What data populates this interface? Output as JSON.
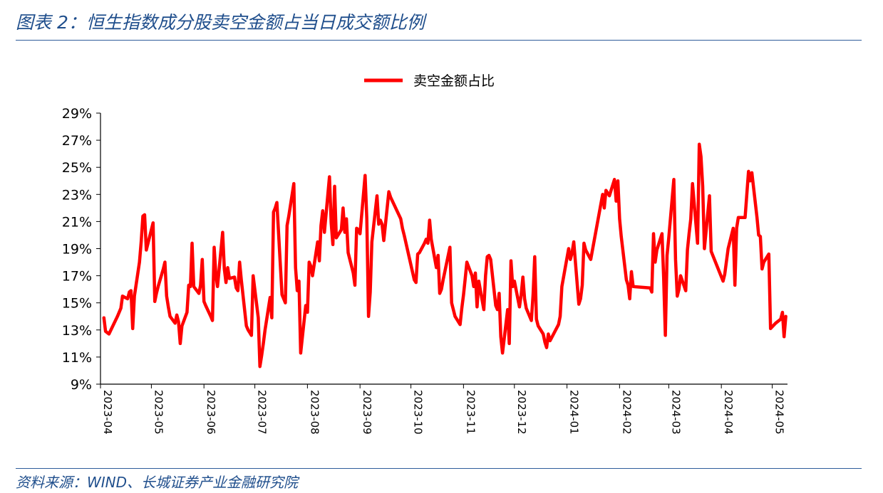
{
  "figure": {
    "title": "图表 2：恒生指数成分股卖空金额占当日成交额比例",
    "source": "资料来源：WIND、长城证券产业金融研究院"
  },
  "chart_data": {
    "type": "line",
    "title": "",
    "xlabel": "",
    "ylabel": "",
    "ylim": [
      0.09,
      0.29
    ],
    "yticks": [
      "9%",
      "11%",
      "13%",
      "15%",
      "17%",
      "19%",
      "21%",
      "23%",
      "25%",
      "27%",
      "29%"
    ],
    "xticks": [
      "2023-04",
      "2023-05",
      "2023-06",
      "2023-07",
      "2023-08",
      "2023-09",
      "2023-10",
      "2023-11",
      "2023-12",
      "2024-01",
      "2024-02",
      "2024-03",
      "2024-04",
      "2024-05"
    ],
    "legend": {
      "position": "top-center"
    },
    "grid": false,
    "series": [
      {
        "name": "卖空金额占比",
        "color": "#FF0000",
        "points": [
          [
            "2023-04-03",
            0.139
          ],
          [
            "2023-04-04",
            0.129
          ],
          [
            "2023-04-06",
            0.127
          ],
          [
            "2023-04-11",
            0.14
          ],
          [
            "2023-04-13",
            0.146
          ],
          [
            "2023-04-14",
            0.155
          ],
          [
            "2023-04-17",
            0.153
          ],
          [
            "2023-04-18",
            0.158
          ],
          [
            "2023-04-19",
            0.159
          ],
          [
            "2023-04-20",
            0.131
          ],
          [
            "2023-04-21",
            0.155
          ],
          [
            "2023-04-24",
            0.18
          ],
          [
            "2023-04-25",
            0.195
          ],
          [
            "2023-04-26",
            0.214
          ],
          [
            "2023-04-27",
            0.215
          ],
          [
            "2023-04-28",
            0.189
          ],
          [
            "2023-05-02",
            0.209
          ],
          [
            "2023-05-03",
            0.151
          ],
          [
            "2023-05-04",
            0.157
          ],
          [
            "2023-05-05",
            0.162
          ],
          [
            "2023-05-08",
            0.175
          ],
          [
            "2023-05-09",
            0.18
          ],
          [
            "2023-05-10",
            0.155
          ],
          [
            "2023-05-11",
            0.147
          ],
          [
            "2023-05-12",
            0.14
          ],
          [
            "2023-05-15",
            0.135
          ],
          [
            "2023-05-16",
            0.141
          ],
          [
            "2023-05-17",
            0.136
          ],
          [
            "2023-05-18",
            0.12
          ],
          [
            "2023-05-19",
            0.133
          ],
          [
            "2023-05-22",
            0.143
          ],
          [
            "2023-05-23",
            0.163
          ],
          [
            "2023-05-24",
            0.162
          ],
          [
            "2023-05-25",
            0.194
          ],
          [
            "2023-05-26",
            0.162
          ],
          [
            "2023-05-29",
            0.157
          ],
          [
            "2023-05-30",
            0.163
          ],
          [
            "2023-05-31",
            0.182
          ],
          [
            "2023-06-01",
            0.151
          ],
          [
            "2023-06-02",
            0.148
          ],
          [
            "2023-06-05",
            0.14
          ],
          [
            "2023-06-06",
            0.137
          ],
          [
            "2023-06-07",
            0.191
          ],
          [
            "2023-06-08",
            0.171
          ],
          [
            "2023-06-09",
            0.162
          ],
          [
            "2023-06-12",
            0.202
          ],
          [
            "2023-06-13",
            0.175
          ],
          [
            "2023-06-14",
            0.165
          ],
          [
            "2023-06-15",
            0.176
          ],
          [
            "2023-06-16",
            0.168
          ],
          [
            "2023-06-19",
            0.169
          ],
          [
            "2023-06-20",
            0.161
          ],
          [
            "2023-06-21",
            0.159
          ],
          [
            "2023-06-22",
            0.18
          ],
          [
            "2023-06-23",
            0.167
          ],
          [
            "2023-06-26",
            0.133
          ],
          [
            "2023-06-27",
            0.13
          ],
          [
            "2023-06-28",
            0.128
          ],
          [
            "2023-06-29",
            0.126
          ],
          [
            "2023-06-30",
            0.17
          ],
          [
            "2023-07-03",
            0.139
          ],
          [
            "2023-07-04",
            0.103
          ],
          [
            "2023-07-05",
            0.111
          ],
          [
            "2023-07-06",
            0.12
          ],
          [
            "2023-07-07",
            0.13
          ],
          [
            "2023-07-10",
            0.154
          ],
          [
            "2023-07-11",
            0.139
          ],
          [
            "2023-07-12",
            0.217
          ],
          [
            "2023-07-13",
            0.22
          ],
          [
            "2023-07-14",
            0.224
          ],
          [
            "2023-07-17",
            0.156
          ],
          [
            "2023-07-18",
            0.153
          ],
          [
            "2023-07-19",
            0.15
          ],
          [
            "2023-07-20",
            0.207
          ],
          [
            "2023-07-21",
            0.214
          ],
          [
            "2023-07-24",
            0.238
          ],
          [
            "2023-07-25",
            0.176
          ],
          [
            "2023-07-26",
            0.159
          ],
          [
            "2023-07-27",
            0.166
          ],
          [
            "2023-07-28",
            0.113
          ],
          [
            "2023-07-31",
            0.148
          ],
          [
            "2023-08-01",
            0.143
          ],
          [
            "2023-08-02",
            0.18
          ],
          [
            "2023-08-03",
            0.177
          ],
          [
            "2023-08-04",
            0.17
          ],
          [
            "2023-08-07",
            0.195
          ],
          [
            "2023-08-08",
            0.181
          ],
          [
            "2023-08-09",
            0.207
          ],
          [
            "2023-08-10",
            0.218
          ],
          [
            "2023-08-11",
            0.202
          ],
          [
            "2023-08-14",
            0.243
          ],
          [
            "2023-08-15",
            0.209
          ],
          [
            "2023-08-16",
            0.193
          ],
          [
            "2023-08-17",
            0.236
          ],
          [
            "2023-08-18",
            0.198
          ],
          [
            "2023-08-21",
            0.204
          ],
          [
            "2023-08-22",
            0.22
          ],
          [
            "2023-08-23",
            0.202
          ],
          [
            "2023-08-24",
            0.212
          ],
          [
            "2023-08-25",
            0.187
          ],
          [
            "2023-08-28",
            0.172
          ],
          [
            "2023-08-29",
            0.163
          ],
          [
            "2023-08-30",
            0.205
          ],
          [
            "2023-08-31",
            0.204
          ],
          [
            "2023-09-01",
            0.201
          ],
          [
            "2023-09-04",
            0.244
          ],
          [
            "2023-09-05",
            0.212
          ],
          [
            "2023-09-06",
            0.14
          ],
          [
            "2023-09-07",
            0.158
          ],
          [
            "2023-09-08",
            0.195
          ],
          [
            "2023-09-11",
            0.229
          ],
          [
            "2023-09-12",
            0.208
          ],
          [
            "2023-09-13",
            0.211
          ],
          [
            "2023-09-14",
            0.208
          ],
          [
            "2023-09-15",
            0.196
          ],
          [
            "2023-09-18",
            0.232
          ],
          [
            "2023-09-19",
            0.228
          ],
          [
            "2023-09-25",
            0.212
          ],
          [
            "2023-09-26",
            0.205
          ],
          [
            "2023-09-27",
            0.2
          ],
          [
            "2023-10-03",
            0.167
          ],
          [
            "2023-10-04",
            0.165
          ],
          [
            "2023-10-05",
            0.186
          ],
          [
            "2023-10-06",
            0.187
          ],
          [
            "2023-10-09",
            0.194
          ],
          [
            "2023-10-10",
            0.197
          ],
          [
            "2023-10-11",
            0.194
          ],
          [
            "2023-10-12",
            0.211
          ],
          [
            "2023-10-13",
            0.197
          ],
          [
            "2023-10-16",
            0.176
          ],
          [
            "2023-10-17",
            0.185
          ],
          [
            "2023-10-18",
            0.157
          ],
          [
            "2023-10-19",
            0.16
          ],
          [
            "2023-10-20",
            0.167
          ],
          [
            "2023-10-24",
            0.191
          ],
          [
            "2023-10-25",
            0.15
          ],
          [
            "2023-10-26",
            0.145
          ],
          [
            "2023-10-27",
            0.14
          ],
          [
            "2023-10-30",
            0.134
          ],
          [
            "2023-10-31",
            0.146
          ],
          [
            "2023-11-01",
            0.156
          ],
          [
            "2023-11-02",
            0.168
          ],
          [
            "2023-11-03",
            0.18
          ],
          [
            "2023-11-06",
            0.17
          ],
          [
            "2023-11-07",
            0.162
          ],
          [
            "2023-11-08",
            0.172
          ],
          [
            "2023-11-09",
            0.147
          ],
          [
            "2023-11-10",
            0.166
          ],
          [
            "2023-11-13",
            0.145
          ],
          [
            "2023-11-14",
            0.17
          ],
          [
            "2023-11-15",
            0.184
          ],
          [
            "2023-11-16",
            0.185
          ],
          [
            "2023-11-17",
            0.182
          ],
          [
            "2023-11-20",
            0.148
          ],
          [
            "2023-11-21",
            0.145
          ],
          [
            "2023-11-22",
            0.157
          ],
          [
            "2023-11-23",
            0.125
          ],
          [
            "2023-11-24",
            0.113
          ],
          [
            "2023-11-27",
            0.145
          ],
          [
            "2023-11-28",
            0.12
          ],
          [
            "2023-11-29",
            0.181
          ],
          [
            "2023-11-30",
            0.162
          ],
          [
            "2023-12-01",
            0.166
          ],
          [
            "2023-12-04",
            0.147
          ],
          [
            "2023-12-05",
            0.156
          ],
          [
            "2023-12-06",
            0.169
          ],
          [
            "2023-12-07",
            0.153
          ],
          [
            "2023-12-08",
            0.146
          ],
          [
            "2023-12-11",
            0.137
          ],
          [
            "2023-12-12",
            0.156
          ],
          [
            "2023-12-13",
            0.184
          ],
          [
            "2023-12-14",
            0.138
          ],
          [
            "2023-12-15",
            0.133
          ],
          [
            "2023-12-18",
            0.127
          ],
          [
            "2023-12-19",
            0.121
          ],
          [
            "2023-12-20",
            0.117
          ],
          [
            "2023-12-21",
            0.127
          ],
          [
            "2023-12-22",
            0.122
          ],
          [
            "2023-12-27",
            0.134
          ],
          [
            "2023-12-28",
            0.14
          ],
          [
            "2023-12-29",
            0.162
          ],
          [
            "2024-01-02",
            0.19
          ],
          [
            "2024-01-03",
            0.182
          ],
          [
            "2024-01-04",
            0.187
          ],
          [
            "2024-01-05",
            0.195
          ],
          [
            "2024-01-08",
            0.149
          ],
          [
            "2024-01-09",
            0.153
          ],
          [
            "2024-01-10",
            0.163
          ],
          [
            "2024-01-11",
            0.194
          ],
          [
            "2024-01-12",
            0.189
          ],
          [
            "2024-01-15",
            0.182
          ],
          [
            "2024-01-22",
            0.23
          ],
          [
            "2024-01-23",
            0.22
          ],
          [
            "2024-01-24",
            0.233
          ],
          [
            "2024-01-25",
            0.231
          ],
          [
            "2024-01-26",
            0.229
          ],
          [
            "2024-01-29",
            0.241
          ],
          [
            "2024-01-30",
            0.225
          ],
          [
            "2024-01-31",
            0.24
          ],
          [
            "2024-02-01",
            0.212
          ],
          [
            "2024-02-02",
            0.199
          ],
          [
            "2024-02-05",
            0.167
          ],
          [
            "2024-02-06",
            0.163
          ],
          [
            "2024-02-07",
            0.153
          ],
          [
            "2024-02-08",
            0.173
          ],
          [
            "2024-02-09",
            0.162
          ],
          [
            "2024-02-19",
            0.161
          ],
          [
            "2024-02-20",
            0.158
          ],
          [
            "2024-02-21",
            0.201
          ],
          [
            "2024-02-22",
            0.18
          ],
          [
            "2024-02-23",
            0.189
          ],
          [
            "2024-02-26",
            0.201
          ],
          [
            "2024-02-27",
            0.169
          ],
          [
            "2024-02-28",
            0.126
          ],
          [
            "2024-02-29",
            0.185
          ],
          [
            "2024-03-01",
            0.198
          ],
          [
            "2024-03-04",
            0.241
          ],
          [
            "2024-03-05",
            0.182
          ],
          [
            "2024-03-06",
            0.155
          ],
          [
            "2024-03-07",
            0.16
          ],
          [
            "2024-03-08",
            0.17
          ],
          [
            "2024-03-11",
            0.159
          ],
          [
            "2024-03-12",
            0.189
          ],
          [
            "2024-03-13",
            0.201
          ],
          [
            "2024-03-14",
            0.212
          ],
          [
            "2024-03-15",
            0.238
          ],
          [
            "2024-03-18",
            0.194
          ],
          [
            "2024-03-19",
            0.267
          ],
          [
            "2024-03-20",
            0.258
          ],
          [
            "2024-03-21",
            0.236
          ],
          [
            "2024-03-22",
            0.19
          ],
          [
            "2024-03-25",
            0.229
          ],
          [
            "2024-03-26",
            0.188
          ],
          [
            "2024-04-02",
            0.166
          ],
          [
            "2024-04-03",
            0.171
          ],
          [
            "2024-04-05",
            0.19
          ],
          [
            "2024-04-08",
            0.205
          ],
          [
            "2024-04-09",
            0.163
          ],
          [
            "2024-04-10",
            0.205
          ],
          [
            "2024-04-11",
            0.213
          ],
          [
            "2024-04-12",
            0.213
          ],
          [
            "2024-04-15",
            0.213
          ],
          [
            "2024-04-16",
            0.23
          ],
          [
            "2024-04-17",
            0.247
          ],
          [
            "2024-04-18",
            0.24
          ],
          [
            "2024-04-19",
            0.246
          ],
          [
            "2024-04-22",
            0.213
          ],
          [
            "2024-04-23",
            0.2
          ],
          [
            "2024-04-24",
            0.199
          ],
          [
            "2024-04-25",
            0.175
          ],
          [
            "2024-04-26",
            0.18
          ],
          [
            "2024-04-29",
            0.186
          ],
          [
            "2024-04-30",
            0.131
          ],
          [
            "2024-05-03",
            0.135
          ],
          [
            "2024-05-06",
            0.138
          ],
          [
            "2024-05-07",
            0.143
          ],
          [
            "2024-05-08",
            0.125
          ],
          [
            "2024-05-09",
            0.14
          ]
        ]
      }
    ]
  }
}
